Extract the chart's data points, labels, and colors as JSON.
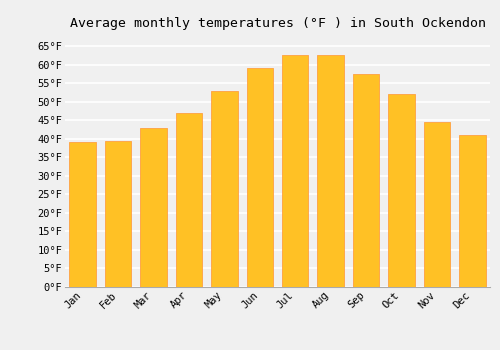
{
  "title": "Average monthly temperatures (°F ) in South Ockendon",
  "months": [
    "Jan",
    "Feb",
    "Mar",
    "Apr",
    "May",
    "Jun",
    "Jul",
    "Aug",
    "Sep",
    "Oct",
    "Nov",
    "Dec"
  ],
  "values": [
    39.0,
    39.5,
    43.0,
    47.0,
    53.0,
    59.0,
    62.5,
    62.5,
    57.5,
    52.0,
    44.5,
    41.0
  ],
  "bar_color_face": "#FFC125",
  "bar_color_edge": "#FFA040",
  "ylim": [
    0,
    68
  ],
  "yticks": [
    0,
    5,
    10,
    15,
    20,
    25,
    30,
    35,
    40,
    45,
    50,
    55,
    60,
    65
  ],
  "ytick_labels": [
    "0°F",
    "5°F",
    "10°F",
    "15°F",
    "20°F",
    "25°F",
    "30°F",
    "35°F",
    "40°F",
    "45°F",
    "50°F",
    "55°F",
    "60°F",
    "65°F"
  ],
  "background_color": "#f0f0f0",
  "grid_color": "#ffffff",
  "title_fontsize": 9.5,
  "tick_fontsize": 7.5,
  "title_font": "monospace",
  "bar_width": 0.75
}
